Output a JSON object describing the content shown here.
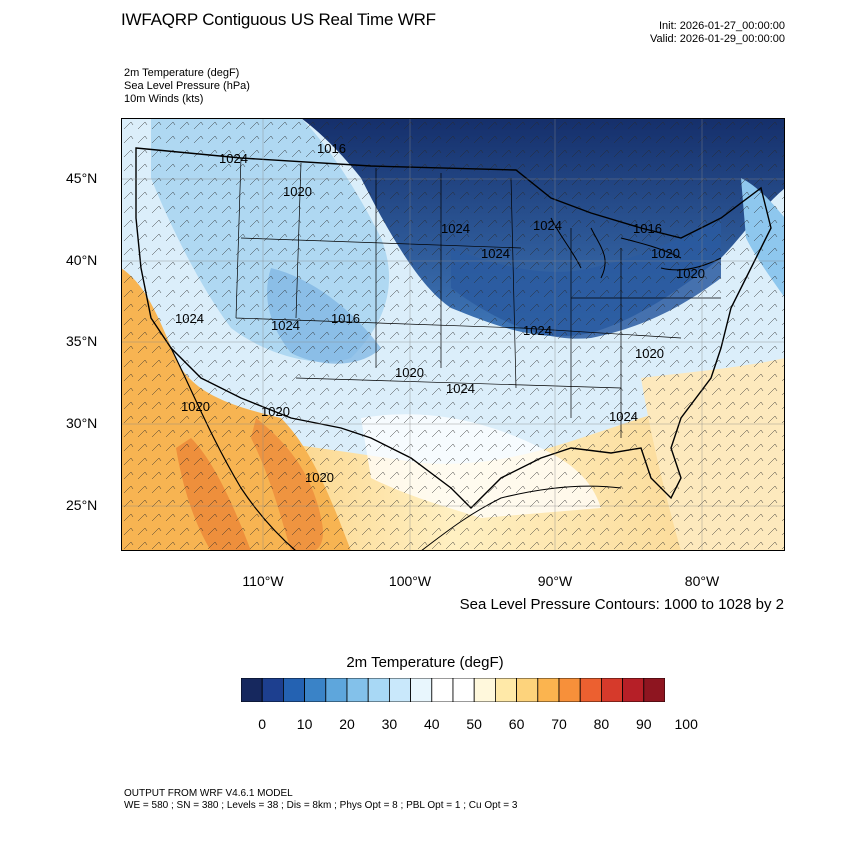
{
  "header": {
    "title": "IWFAQRP Contiguous US Real Time WRF",
    "init": "Init: 2026-01-27_00:00:00",
    "valid": "Valid: 2026-01-29_00:00:00"
  },
  "fields": [
    "2m Temperature   (degF)",
    "Sea Level Pressure   (hPa)",
    "10m Winds   (kts)"
  ],
  "map": {
    "lat_labels": [
      "45°N",
      "40°N",
      "35°N",
      "30°N",
      "25°N"
    ],
    "lon_labels": [
      "110°W",
      "100°W",
      "90°W",
      "80°W"
    ],
    "pressure_labels": [
      "1016",
      "1024",
      "1020",
      "1024",
      "1024",
      "1024",
      "1024",
      "1024",
      "1016",
      "1020",
      "1016",
      "1020",
      "1024",
      "1020",
      "1024",
      "1020",
      "1020",
      "1020",
      "1020",
      "1024"
    ],
    "colors": {
      "cold": "#1a3a78",
      "cool": "#a9d6f2",
      "neutral": "#ffffff",
      "warm": "#f9c15e",
      "hot": "#f08f3a"
    }
  },
  "contour_note": "Sea Level Pressure Contours: 1000 to 1028 by 2",
  "colorbar": {
    "title": "2m Temperature  (degF)",
    "colors": [
      "#16285e",
      "#1d3f8f",
      "#2462b2",
      "#3a83c7",
      "#5ea6dc",
      "#83c1ea",
      "#a8d8f5",
      "#c9e8fb",
      "#e8f6fd",
      "#ffffff",
      "#ffffff",
      "#fff8dc",
      "#ffe9a8",
      "#fdd37c",
      "#fbb44f",
      "#f7903a",
      "#ec6030",
      "#d63a2b",
      "#b61f27",
      "#8e1520"
    ],
    "labels": [
      "0",
      "10",
      "20",
      "30",
      "40",
      "50",
      "60",
      "70",
      "80",
      "90",
      "100"
    ]
  },
  "footer": {
    "line1": "OUTPUT FROM WRF V4.6.1 MODEL",
    "line2": "WE = 580 ; SN = 380 ; Levels = 38 ; Dis = 8km ; Phys Opt = 8 ; PBL Opt = 1 ; Cu Opt = 3"
  }
}
